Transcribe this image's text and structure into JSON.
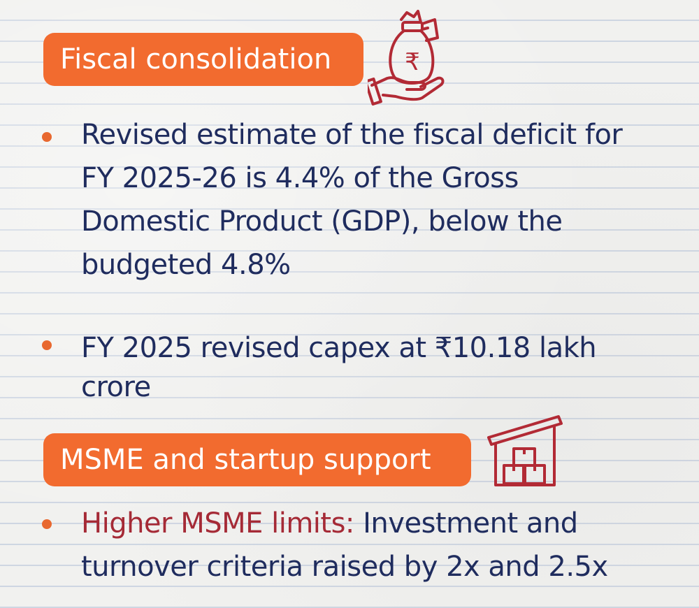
{
  "sections": [
    {
      "heading": "Fiscal consolidation",
      "icon": "money-bag-hand-icon",
      "bullets": [
        {
          "text": "Revised estimate of the fiscal deficit for FY 2025-26 is 4.4% of the Gross Domestic Product (GDP), below the budgeted 4.8%"
        },
        {
          "text": "FY 2025 revised capex at ₹10.18 lakh crore"
        }
      ]
    },
    {
      "heading": "MSME and startup support",
      "icon": "warehouse-boxes-icon",
      "bullets": [
        {
          "highlight": "Higher MSME limits:",
          "text": " Investment and turnover criteria raised by 2x and 2.5x"
        }
      ]
    }
  ],
  "colors": {
    "accent_orange": "#f26b2f",
    "text_navy": "#1f2c5e",
    "highlight_red": "#a52a36",
    "icon_red": "#b22a35"
  },
  "rupee_symbol": "₹"
}
